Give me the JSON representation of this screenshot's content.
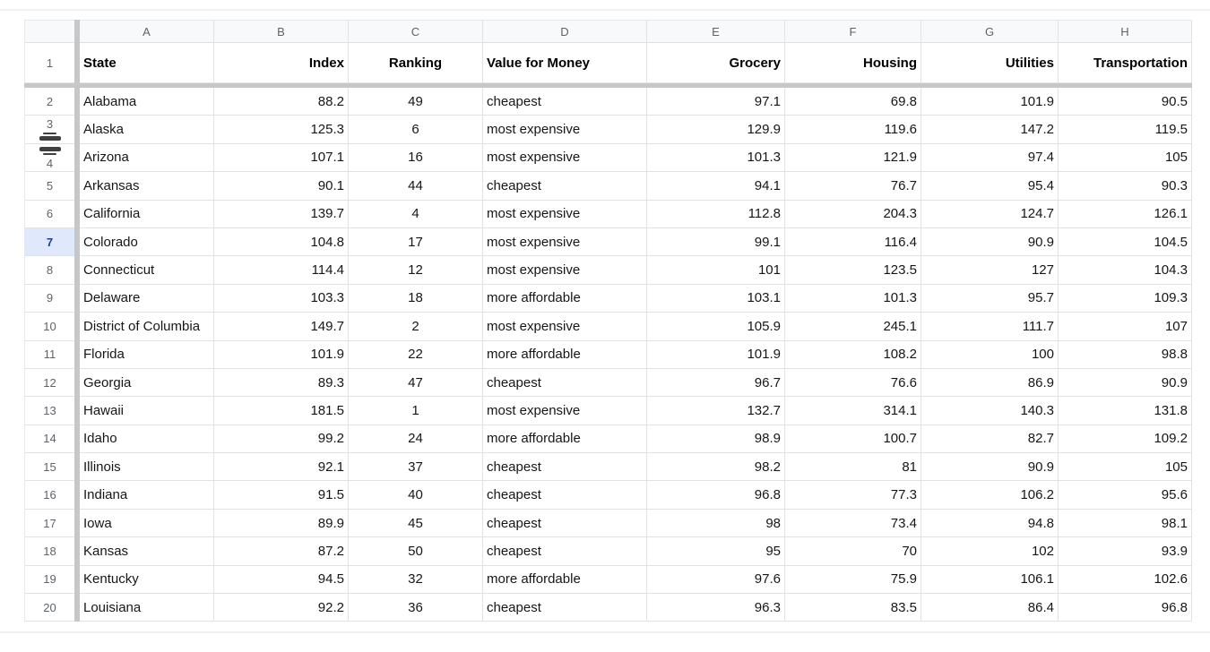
{
  "colors": {
    "row_highlight": "#dfe9fb",
    "active_row_number": "#1c3e94",
    "frozen_divider": "#c5c7c9",
    "grid_line": "#e2e2e3",
    "header_text": "#5f6368",
    "resize_handle": "#3f3f3f"
  },
  "sheet": {
    "column_letters": [
      "A",
      "B",
      "C",
      "D",
      "E",
      "F",
      "G",
      "H"
    ],
    "header": {
      "n": "1",
      "cells": [
        "State",
        "Index",
        "Ranking",
        "Value for Money",
        "Grocery",
        "Housing",
        "Utilities",
        "Transportation"
      ]
    },
    "rows": [
      {
        "n": "2",
        "cells": [
          "Alabama",
          "88.2",
          "49",
          "cheapest",
          "97.1",
          "69.8",
          "101.9",
          "90.5"
        ]
      },
      {
        "n": "3",
        "resize": "bottom",
        "cells": [
          "Alaska",
          "125.3",
          "6",
          "most expensive",
          "129.9",
          "119.6",
          "147.2",
          "119.5"
        ]
      },
      {
        "n": "4",
        "resize": "top",
        "cells": [
          "Arizona",
          "107.1",
          "16",
          "most expensive",
          "101.3",
          "121.9",
          "97.4",
          "105"
        ]
      },
      {
        "n": "5",
        "cells": [
          "Arkansas",
          "90.1",
          "44",
          "cheapest",
          "94.1",
          "76.7",
          "95.4",
          "90.3"
        ]
      },
      {
        "n": "6",
        "cells": [
          "California",
          "139.7",
          "4",
          "most expensive",
          "112.8",
          "204.3",
          "124.7",
          "126.1"
        ]
      },
      {
        "n": "7",
        "highlight": true,
        "cells": [
          "Colorado",
          "104.8",
          "17",
          "most expensive",
          "99.1",
          "116.4",
          "90.9",
          "104.5"
        ]
      },
      {
        "n": "8",
        "cells": [
          "Connecticut",
          "114.4",
          "12",
          "most expensive",
          "101",
          "123.5",
          "127",
          "104.3"
        ]
      },
      {
        "n": "9",
        "cells": [
          "Delaware",
          "103.3",
          "18",
          "more affordable",
          "103.1",
          "101.3",
          "95.7",
          "109.3"
        ]
      },
      {
        "n": "10",
        "cells": [
          "District of Columbia",
          "149.7",
          "2",
          "most expensive",
          "105.9",
          "245.1",
          "111.7",
          "107"
        ]
      },
      {
        "n": "11",
        "cells": [
          "Florida",
          "101.9",
          "22",
          "more affordable",
          "101.9",
          "108.2",
          "100",
          "98.8"
        ]
      },
      {
        "n": "12",
        "cells": [
          "Georgia",
          "89.3",
          "47",
          "cheapest",
          "96.7",
          "76.6",
          "86.9",
          "90.9"
        ]
      },
      {
        "n": "13",
        "cells": [
          "Hawaii",
          "181.5",
          "1",
          "most expensive",
          "132.7",
          "314.1",
          "140.3",
          "131.8"
        ]
      },
      {
        "n": "14",
        "cells": [
          "Idaho",
          "99.2",
          "24",
          "more affordable",
          "98.9",
          "100.7",
          "82.7",
          "109.2"
        ]
      },
      {
        "n": "15",
        "cells": [
          "Illinois",
          "92.1",
          "37",
          "cheapest",
          "98.2",
          "81",
          "90.9",
          "105"
        ]
      },
      {
        "n": "16",
        "cells": [
          "Indiana",
          "91.5",
          "40",
          "cheapest",
          "96.8",
          "77.3",
          "106.2",
          "95.6"
        ]
      },
      {
        "n": "17",
        "cells": [
          "Iowa",
          "89.9",
          "45",
          "cheapest",
          "98",
          "73.4",
          "94.8",
          "98.1"
        ]
      },
      {
        "n": "18",
        "cells": [
          "Kansas",
          "87.2",
          "50",
          "cheapest",
          "95",
          "70",
          "102",
          "93.9"
        ]
      },
      {
        "n": "19",
        "cells": [
          "Kentucky",
          "94.5",
          "32",
          "more affordable",
          "97.6",
          "75.9",
          "106.1",
          "102.6"
        ]
      },
      {
        "n": "20",
        "cells": [
          "Louisiana",
          "92.2",
          "36",
          "cheapest",
          "96.3",
          "83.5",
          "86.4",
          "96.8"
        ]
      }
    ]
  }
}
